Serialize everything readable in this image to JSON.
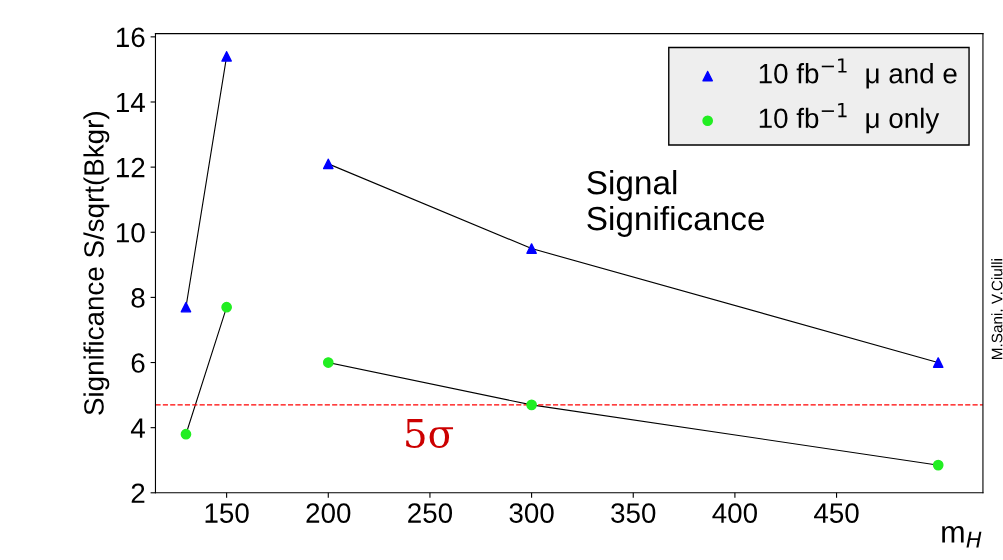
{
  "chart_data": {
    "type": "line",
    "ylabel": "Significance S/sqrt(Bkgr)",
    "xlabel": "m$_{H}$",
    "x": [
      130,
      150,
      175,
      200,
      300,
      500
    ],
    "series": [
      {
        "name": "10 fb$^{−1}$  μ and e",
        "color": "#0000ff",
        "marker": "triangle",
        "values": [
          7.7,
          15.4,
          null,
          12.1,
          9.5,
          6.0
        ]
      },
      {
        "name": "10 fb$^{−1}$  μ only",
        "color": "#22ee22",
        "marker": "circle",
        "values": [
          3.8,
          7.7,
          null,
          6.0,
          4.7,
          2.85
        ]
      }
    ],
    "xlim": [
      115,
      522
    ],
    "xticks": [
      150,
      200,
      250,
      300,
      350,
      400,
      450
    ],
    "ylim": [
      2,
      16.1
    ],
    "yticks": [
      2,
      4,
      6,
      8,
      10,
      12,
      14,
      16
    ],
    "ref_lines": [
      {
        "axis": "y",
        "value": 4.7,
        "label": "5σ",
        "color": "#ff0000",
        "line_style": "dashed"
      }
    ],
    "annotations": [
      "Signal\nSignificance",
      "M.Sani, V.Ciulli"
    ],
    "legend": "top right",
    "grid": false,
    "line_style": "solid"
  }
}
